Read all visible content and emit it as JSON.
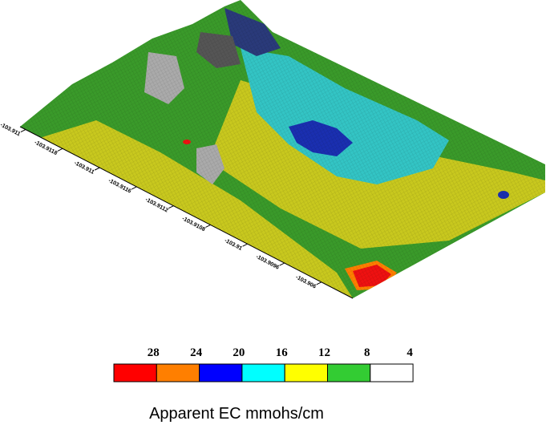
{
  "chart_data": {
    "type": "heatmap",
    "title": "",
    "legend_title": "Apparent EC mmohs/cm",
    "legend_placement": "bottom",
    "x_axis_tick_labels": [
      "-103.911",
      "-103.9118",
      "-103.911",
      "-103.9116",
      "-103.9112",
      "-103.9108",
      "-103.91",
      "-103.9096",
      "-103.906"
    ],
    "legend": {
      "boundaries": [
        "28",
        "24",
        "20",
        "16",
        "12",
        "8",
        "4"
      ],
      "colors": [
        "#ff0000",
        "#ff7f00",
        "#0000ff",
        "#00ffff",
        "#ffff00",
        "#33cc33",
        "#ffffff"
      ]
    },
    "zones": [
      {
        "level": "8-12",
        "color": "#3a9a2a",
        "description": "dominant background green"
      },
      {
        "level": "12-16",
        "color": "#c8c81e",
        "description": "yellow bands"
      },
      {
        "level": "16-20",
        "color": "#33c4c4",
        "description": "central cyan zone"
      },
      {
        "level": "20-24",
        "color": "#1a2fb0",
        "description": "blue spots in cyan zone"
      },
      {
        "level": "24-28",
        "color": "#ff7f00",
        "description": "orange rim near hot spot"
      },
      {
        "level": ">28",
        "color": "#ee1111",
        "description": "red hot spot"
      },
      {
        "level": "4-8",
        "color": "#aaaaaa",
        "description": "grey low zones"
      }
    ]
  }
}
